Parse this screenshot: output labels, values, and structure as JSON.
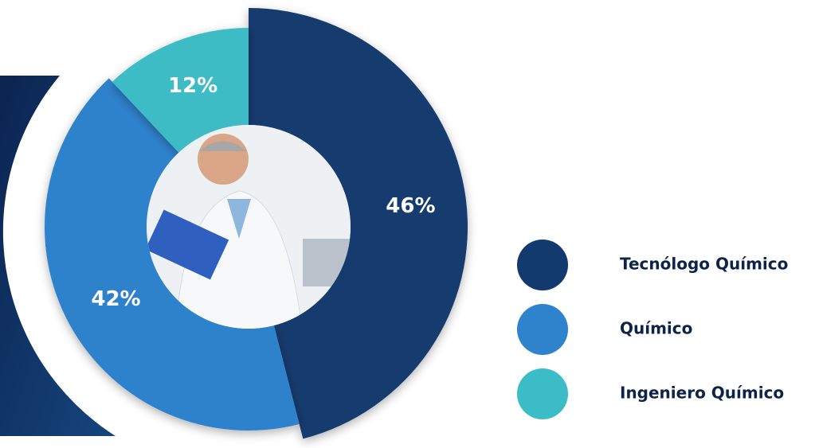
{
  "chart_data": {
    "type": "pie",
    "categories": [
      "Tecnólogo Químico",
      "Químico",
      "Ingeniero Químico"
    ],
    "values": [
      46,
      42,
      12
    ],
    "value_labels": [
      "46%",
      "42%",
      "12%"
    ],
    "colors": [
      "#123a6e",
      "#2f82cc",
      "#3cbcc6"
    ]
  }
}
